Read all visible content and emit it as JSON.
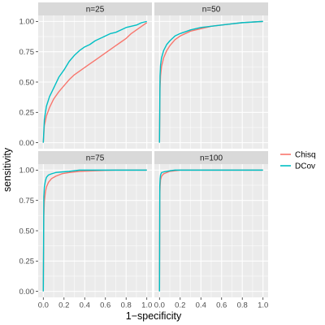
{
  "chart_data": {
    "type": "line",
    "xlabel": "1−specificity",
    "ylabel": "sensitivity",
    "xlim": [
      0,
      1
    ],
    "ylim": [
      0,
      1
    ],
    "x_ticks": [
      "0.0",
      "0.2",
      "0.4",
      "0.6",
      "0.8",
      "1.0"
    ],
    "y_ticks": [
      "0.00",
      "0.25",
      "0.50",
      "0.75",
      "1.00"
    ],
    "grid": true,
    "legend_position": "right",
    "legend": [
      {
        "name": "Chisq",
        "color": "#F8766D"
      },
      {
        "name": "DCov",
        "color": "#00BFC4"
      }
    ],
    "panels": [
      {
        "label": "n=25",
        "series": [
          {
            "name": "Chisq",
            "color": "#F8766D",
            "x": [
              0,
              0.01,
              0.03,
              0.06,
              0.1,
              0.15,
              0.2,
              0.25,
              0.3,
              0.35,
              0.4,
              0.45,
              0.5,
              0.55,
              0.6,
              0.65,
              0.7,
              0.75,
              0.8,
              0.85,
              0.9,
              0.95,
              1.0
            ],
            "y": [
              0,
              0.14,
              0.22,
              0.29,
              0.36,
              0.42,
              0.47,
              0.52,
              0.56,
              0.59,
              0.62,
              0.65,
              0.68,
              0.71,
              0.74,
              0.77,
              0.8,
              0.83,
              0.86,
              0.9,
              0.93,
              0.96,
              0.99
            ]
          },
          {
            "name": "DCov",
            "color": "#00BFC4",
            "x": [
              0,
              0.01,
              0.03,
              0.06,
              0.1,
              0.15,
              0.2,
              0.25,
              0.3,
              0.35,
              0.4,
              0.45,
              0.5,
              0.55,
              0.6,
              0.65,
              0.7,
              0.75,
              0.8,
              0.85,
              0.9,
              0.95,
              1.0
            ],
            "y": [
              0,
              0.19,
              0.3,
              0.38,
              0.45,
              0.54,
              0.6,
              0.67,
              0.72,
              0.76,
              0.79,
              0.81,
              0.84,
              0.86,
              0.88,
              0.9,
              0.91,
              0.93,
              0.95,
              0.96,
              0.97,
              0.99,
              1.0
            ]
          }
        ]
      },
      {
        "label": "n=50",
        "series": [
          {
            "name": "Chisq",
            "color": "#F8766D",
            "x": [
              0,
              0.005,
              0.01,
              0.02,
              0.04,
              0.07,
              0.1,
              0.15,
              0.2,
              0.3,
              0.4,
              0.5,
              0.6,
              0.7,
              0.8,
              0.9,
              1.0
            ],
            "y": [
              0,
              0.45,
              0.55,
              0.63,
              0.7,
              0.76,
              0.8,
              0.85,
              0.88,
              0.92,
              0.94,
              0.96,
              0.97,
              0.98,
              0.99,
              0.995,
              1.0
            ]
          },
          {
            "name": "DCov",
            "color": "#00BFC4",
            "x": [
              0,
              0.005,
              0.01,
              0.02,
              0.04,
              0.07,
              0.1,
              0.15,
              0.2,
              0.3,
              0.4,
              0.5,
              0.6,
              0.7,
              0.8,
              0.9,
              1.0
            ],
            "y": [
              0,
              0.55,
              0.64,
              0.7,
              0.76,
              0.81,
              0.84,
              0.88,
              0.9,
              0.93,
              0.95,
              0.96,
              0.97,
              0.98,
              0.99,
              0.995,
              1.0
            ]
          }
        ]
      },
      {
        "label": "n=75",
        "series": [
          {
            "name": "Chisq",
            "color": "#F8766D",
            "x": [
              0,
              0.005,
              0.01,
              0.02,
              0.03,
              0.05,
              0.08,
              0.12,
              0.18,
              0.25,
              0.35,
              0.5,
              0.7,
              1.0
            ],
            "y": [
              0,
              0.62,
              0.74,
              0.82,
              0.86,
              0.9,
              0.93,
              0.95,
              0.97,
              0.98,
              0.99,
              0.995,
              1.0,
              1.0
            ]
          },
          {
            "name": "DCov",
            "color": "#00BFC4",
            "x": [
              0,
              0.005,
              0.01,
              0.02,
              0.03,
              0.05,
              0.08,
              0.12,
              0.18,
              0.25,
              0.35,
              0.5,
              0.7,
              1.0
            ],
            "y": [
              0,
              0.78,
              0.86,
              0.91,
              0.94,
              0.96,
              0.97,
              0.98,
              0.985,
              0.99,
              1.0,
              1.0,
              1.0,
              1.0
            ]
          }
        ]
      },
      {
        "label": "n=100",
        "series": [
          {
            "name": "Chisq",
            "color": "#F8766D",
            "x": [
              0,
              0.003,
              0.006,
              0.01,
              0.02,
              0.04,
              0.07,
              0.1,
              0.15,
              0.2,
              0.3,
              0.45,
              0.6,
              1.0
            ],
            "y": [
              0,
              0.8,
              0.87,
              0.92,
              0.95,
              0.97,
              0.98,
              0.99,
              0.995,
              1.0,
              1.0,
              1.0,
              1.0,
              1.0
            ]
          },
          {
            "name": "DCov",
            "color": "#00BFC4",
            "x": [
              0,
              0.003,
              0.006,
              0.01,
              0.02,
              0.04,
              0.07,
              0.1,
              0.15,
              0.2,
              0.3,
              0.45,
              0.6,
              1.0
            ],
            "y": [
              0,
              0.87,
              0.93,
              0.96,
              0.98,
              0.985,
              0.99,
              0.995,
              1.0,
              1.0,
              1.0,
              1.0,
              1.0,
              1.0
            ]
          }
        ]
      }
    ]
  }
}
